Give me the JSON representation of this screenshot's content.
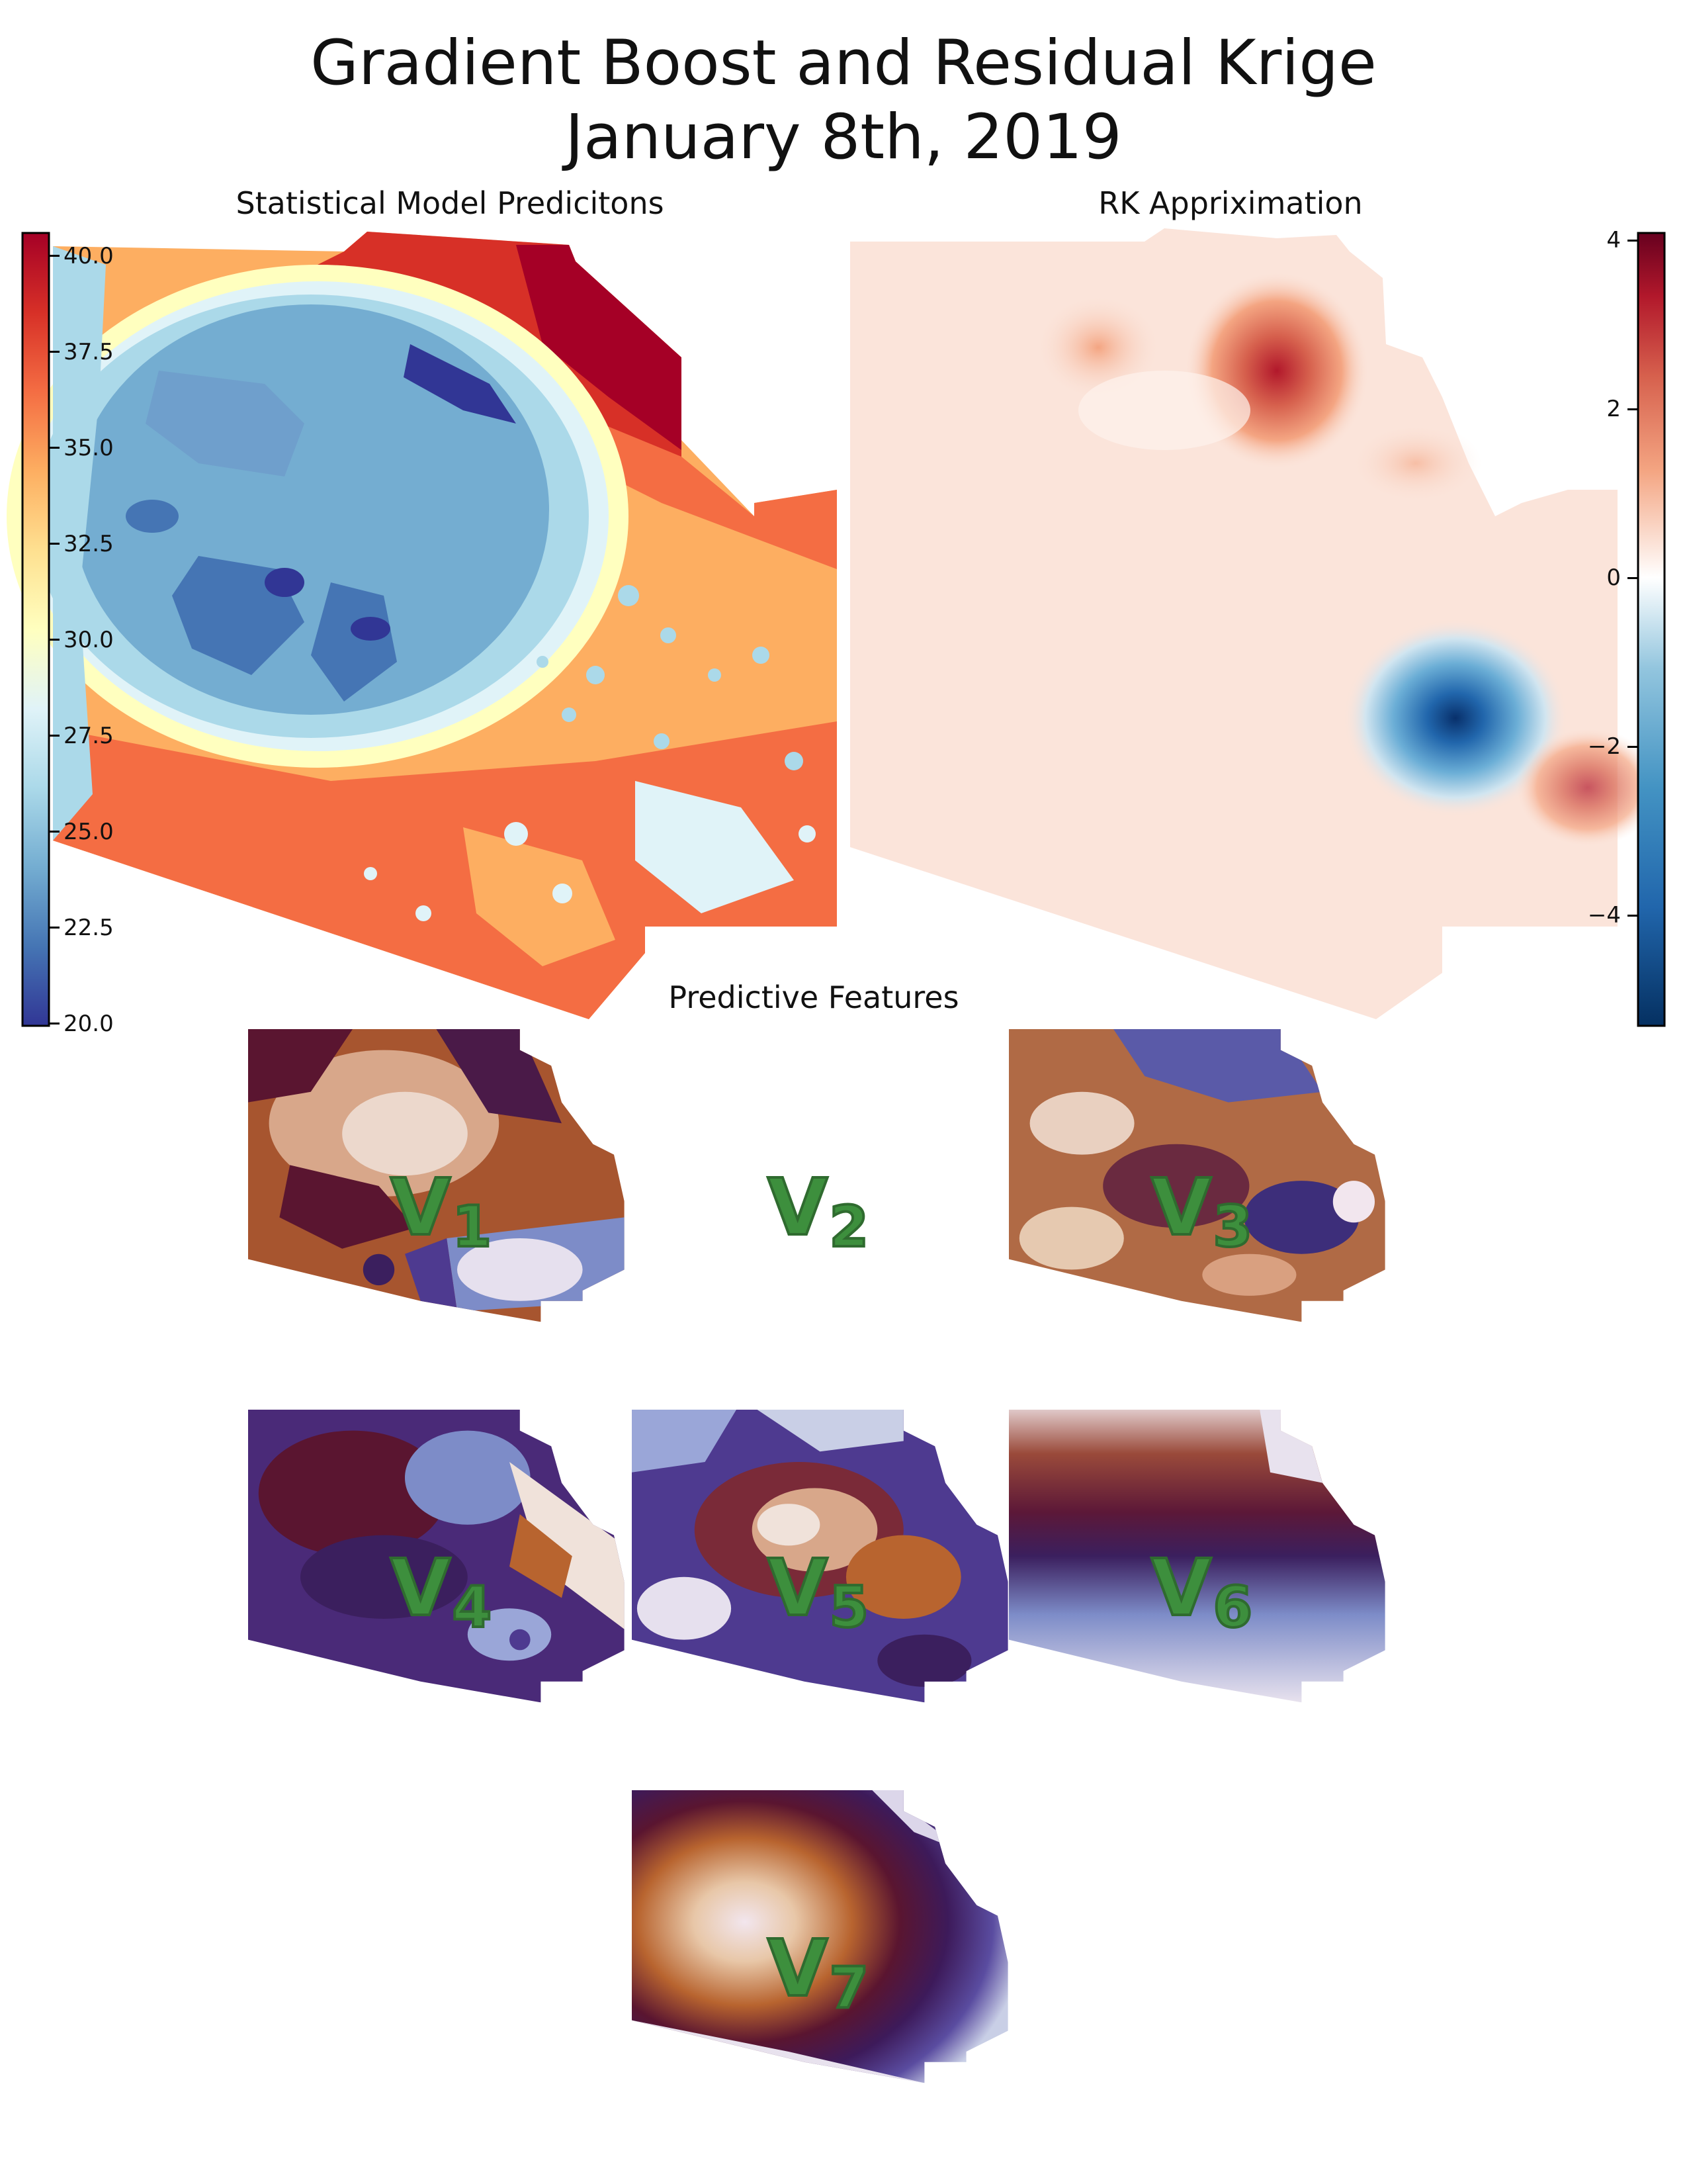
{
  "figure": {
    "title_line1": "Gradient Boost and Residual Krige",
    "title_line2": "January 8th, 2019"
  },
  "panels": {
    "stat_model": {
      "title": "Statistical Model Predicitons",
      "colormap": "RdYlBu_r",
      "colorbar": {
        "min": 20.0,
        "max": 40.0,
        "ticks": [
          "40.0",
          "37.5",
          "35.0",
          "32.5",
          "30.0",
          "27.5",
          "25.0",
          "22.5",
          "20.0"
        ],
        "tick_values": [
          40.0,
          37.5,
          35.0,
          32.5,
          30.0,
          27.5,
          25.0,
          22.5,
          20.0
        ],
        "position": "left"
      }
    },
    "rk": {
      "title": "RK Appriximation",
      "colormap": "RdBu_r",
      "colorbar": {
        "min": -5.3,
        "max": 4.1,
        "ticks": [
          "4",
          "2",
          "0",
          "−2",
          "−4"
        ],
        "tick_values": [
          4,
          2,
          0,
          -2,
          -4
        ],
        "position": "right"
      }
    },
    "features": {
      "title": "Predictive Features",
      "colormap": "twilight_shifted",
      "items": [
        {
          "letter": "V",
          "index": "1"
        },
        {
          "letter": "V",
          "index": "2"
        },
        {
          "letter": "V",
          "index": "3"
        },
        {
          "letter": "V",
          "index": "4"
        },
        {
          "letter": "V",
          "index": "5"
        },
        {
          "letter": "V",
          "index": "6"
        },
        {
          "letter": "V",
          "index": "7"
        }
      ]
    }
  },
  "colors": {
    "red_dark": "#a50026",
    "red": "#d73027",
    "orange": "#f46d43",
    "light_orange": "#fdae61",
    "yellow": "#fee090",
    "pale": "#ffffbf",
    "light_blue": "#e0f3f8",
    "sky": "#abd9e9",
    "blue": "#74add1",
    "mid_blue": "#4575b4",
    "dark_blue": "#313695",
    "label_green": "#3d8f3d"
  }
}
